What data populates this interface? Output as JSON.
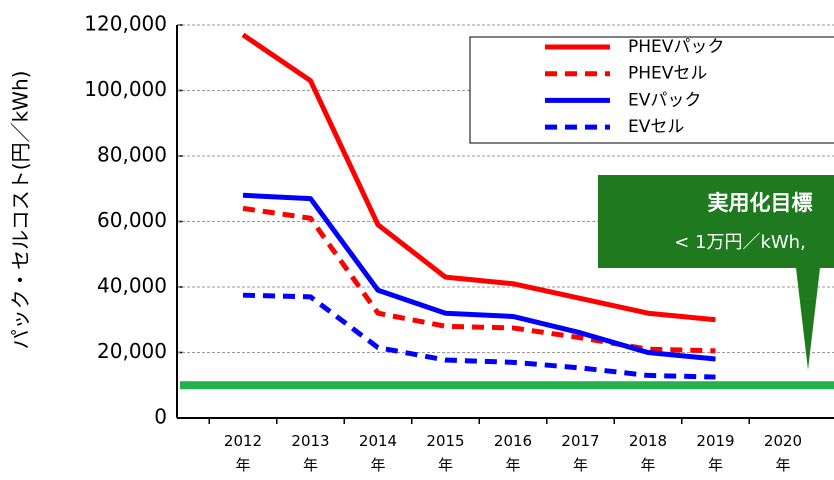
{
  "chart_data": {
    "type": "line",
    "y_label": "パック・セルコスト(円／kWh)",
    "categories": [
      "2012年",
      "2013年",
      "2014年",
      "2015年",
      "2016年",
      "2017年",
      "2018年",
      "2019年",
      "2020年"
    ],
    "series": [
      {
        "name": "PHEVパック",
        "color": "#ff0000",
        "dash": false,
        "values": [
          117000,
          103000,
          59000,
          43000,
          41000,
          36500,
          32000,
          30000,
          null
        ]
      },
      {
        "name": "PHEVセル",
        "color": "#ff0000",
        "dash": true,
        "values": [
          64000,
          61000,
          32000,
          28000,
          27500,
          24500,
          21000,
          20500,
          null
        ]
      },
      {
        "name": "EVパック",
        "color": "#0000ff",
        "dash": false,
        "values": [
          68000,
          67000,
          39000,
          32000,
          31000,
          26000,
          20000,
          18000,
          null
        ]
      },
      {
        "name": "EVセル",
        "color": "#0000ff",
        "dash": true,
        "values": [
          37500,
          37000,
          21500,
          17700,
          17000,
          15300,
          13000,
          12500,
          null
        ]
      }
    ],
    "target": {
      "value": 10000,
      "color": "#22b14c",
      "title": "実用化目標",
      "label": "< 1万円／kWh,"
    },
    "ylim": [
      0,
      120000
    ],
    "yticks": [
      0,
      {
        "value": 20000,
        "label": "20,000"
      },
      {
        "value": 40000,
        "label": "40,000"
      },
      {
        "value": 60000,
        "label": "60,000"
      },
      {
        "value": 80000,
        "label": "80,000"
      },
      {
        "value": 100000,
        "label": "100,000"
      },
      {
        "value": 120000,
        "label": "120,000"
      }
    ],
    "grid": true
  }
}
